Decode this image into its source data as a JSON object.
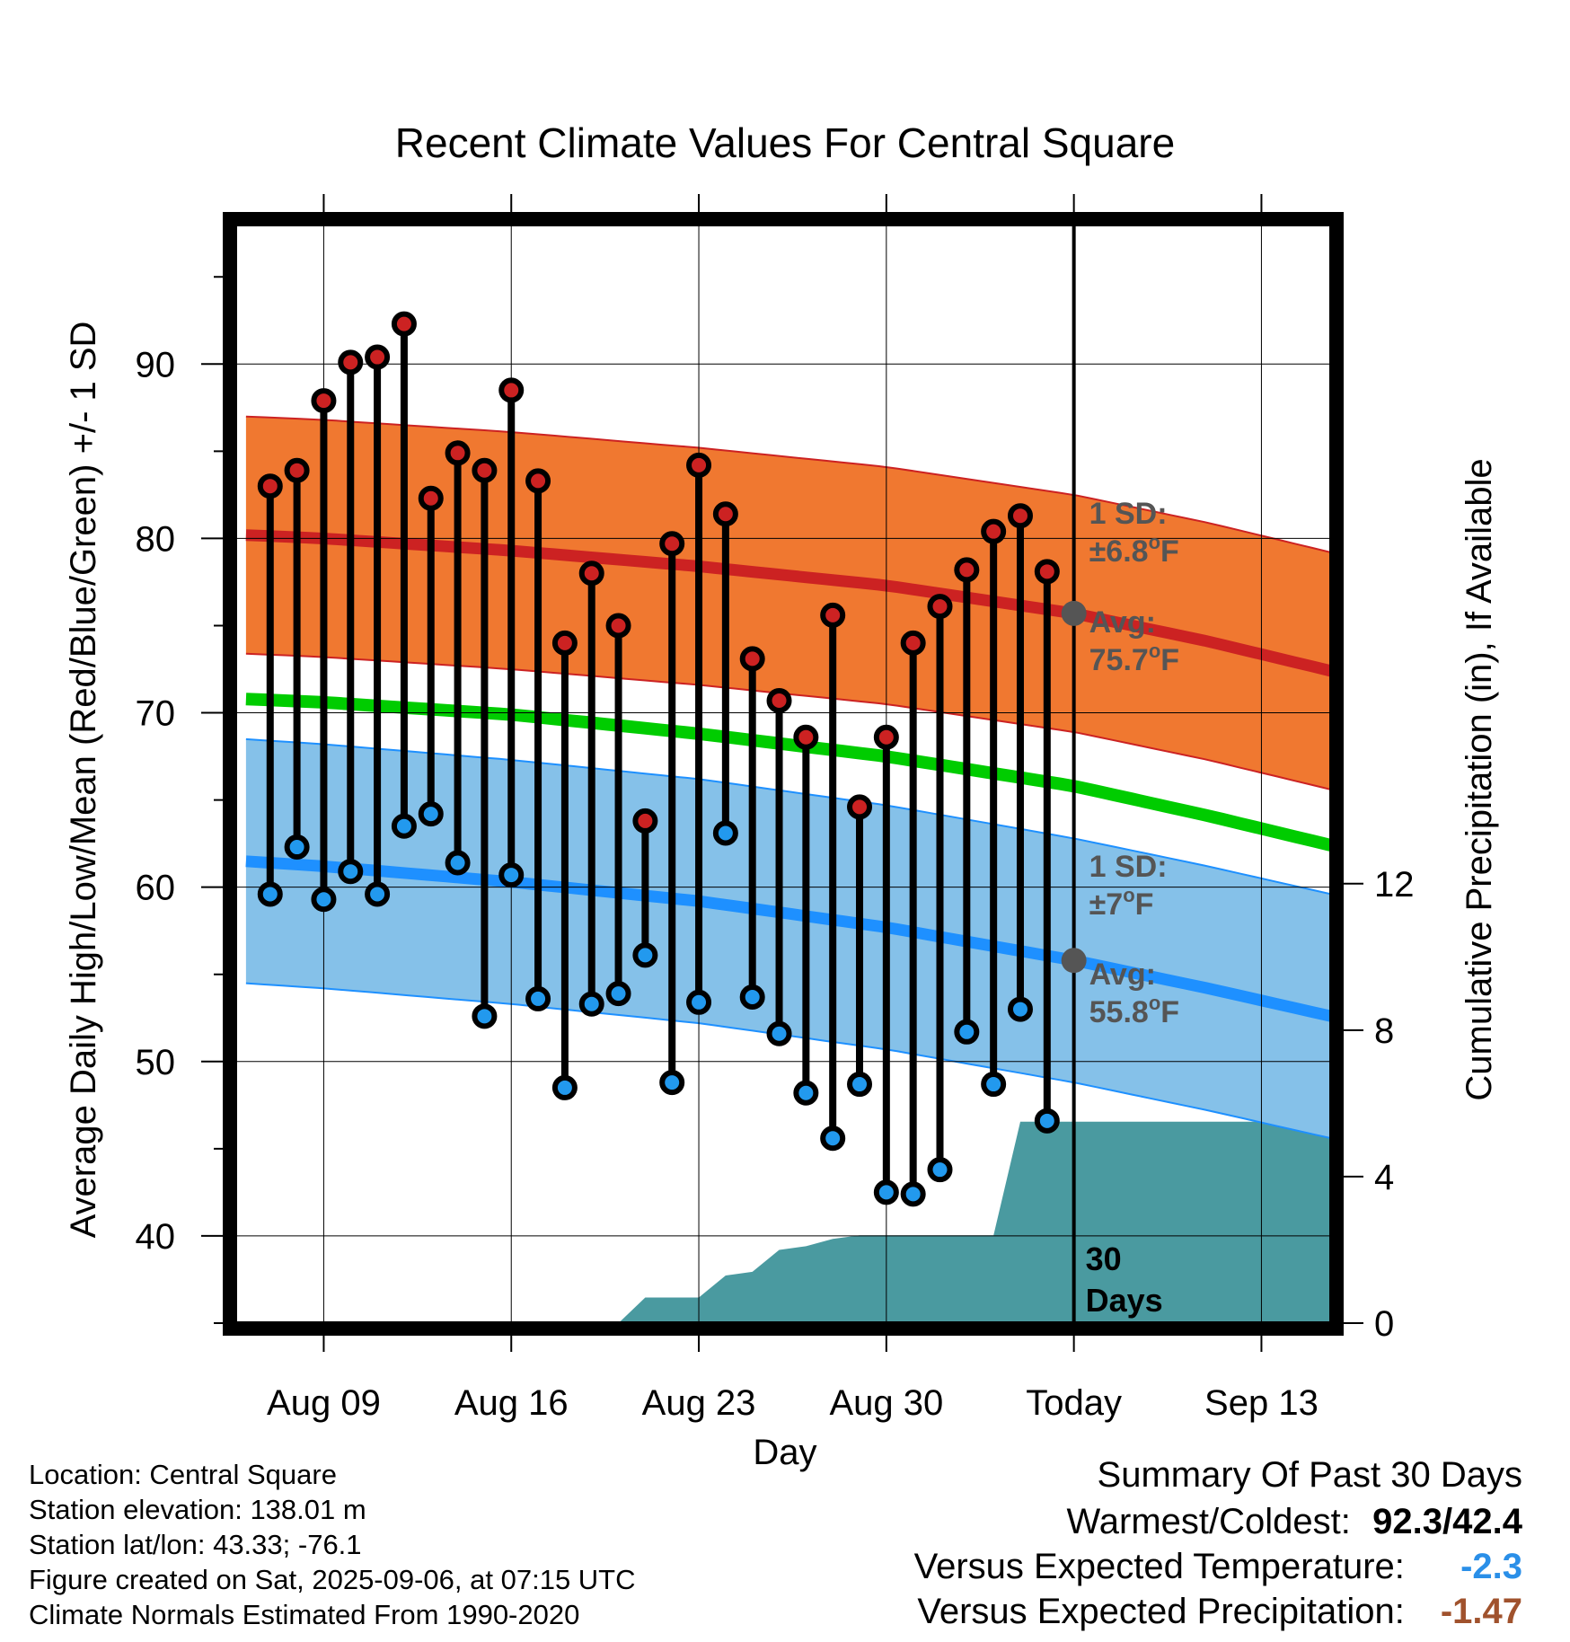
{
  "chart_data": {
    "type": "line",
    "title": "Recent Climate Values For Central Square",
    "xlabel": "Day",
    "ylabel": "Average Daily High/Low/Mean (Red/Blue/Green) +/- 1 SD",
    "y2label": "Cumulative Precipitation (in), If Available",
    "x_tick_labels": [
      "Aug 09",
      "Aug 16",
      "Aug 23",
      "Aug 30",
      "Today",
      "Sep 13"
    ],
    "x_tick_days": [
      -28,
      -21,
      -14,
      -7,
      0,
      7
    ],
    "xlim": [
      -31.3,
      9.6
    ],
    "ylim": [
      35,
      98
    ],
    "y_ticks": [
      40,
      50,
      60,
      70,
      80,
      90
    ],
    "y2lim": [
      0,
      30
    ],
    "y2_ticks": [
      0,
      4,
      8,
      12
    ],
    "grid": true,
    "days": [
      -30,
      -29,
      -28,
      -27,
      -26,
      -25,
      -24,
      -23,
      -22,
      -21,
      -20,
      -19,
      -18,
      -17,
      -16,
      -15,
      -14,
      -13,
      -12,
      -11,
      -10,
      -9,
      -8,
      -7,
      -6,
      -5,
      -4,
      -3,
      -2,
      -1
    ],
    "series": [
      {
        "name": "High",
        "color": "#cc2222",
        "values": [
          83.0,
          83.9,
          87.9,
          90.1,
          90.4,
          92.3,
          82.3,
          84.9,
          83.9,
          88.5,
          83.3,
          74.0,
          78.0,
          75.0,
          63.8,
          79.7,
          84.2,
          81.4,
          73.1,
          70.7,
          68.6,
          75.6,
          64.6,
          68.6,
          74.0,
          76.1,
          78.2,
          80.4,
          81.3,
          78.1
        ]
      },
      {
        "name": "Low",
        "color": "#2299ee",
        "values": [
          59.6,
          62.3,
          59.3,
          60.9,
          59.6,
          63.5,
          64.2,
          61.4,
          52.6,
          60.7,
          53.6,
          48.5,
          53.3,
          53.9,
          56.1,
          48.8,
          53.4,
          63.1,
          53.7,
          51.6,
          48.2,
          45.6,
          48.7,
          42.5,
          42.4,
          43.8,
          51.7,
          48.7,
          53.0,
          46.6
        ]
      }
    ],
    "normals": {
      "days": [
        -31,
        -28,
        -21,
        -14,
        -7,
        0,
        5,
        9.6
      ],
      "high_mean": [
        80.2,
        80.0,
        79.3,
        78.4,
        77.3,
        75.7,
        74.1,
        72.4
      ],
      "high_sd": 6.8,
      "low_mean": [
        61.5,
        61.2,
        60.3,
        59.2,
        57.7,
        55.8,
        54.2,
        52.6
      ],
      "low_sd": 7,
      "mean": [
        70.8,
        70.6,
        69.9,
        68.8,
        67.5,
        65.8,
        64.1,
        62.4
      ],
      "colors": {
        "high_band": "#f07830",
        "high_line": "#cc2222",
        "low_band": "#85c1e9",
        "low_line": "#1e90ff",
        "mean_line": "#00cc00"
      }
    },
    "precipitation": {
      "color": "#4a9aa0",
      "days": [
        -17,
        -16,
        -14,
        -13,
        -12,
        -11,
        -10,
        -9,
        -8,
        -7,
        -6,
        -5,
        -4,
        -3,
        -2,
        0,
        9.6
      ],
      "values": [
        0.0,
        0.7,
        0.7,
        1.3,
        1.4,
        2.0,
        2.1,
        2.3,
        2.4,
        2.4,
        2.4,
        2.4,
        2.4,
        2.4,
        5.5,
        5.5,
        5.5
      ]
    },
    "annotations": {
      "high_sd": "1 SD:",
      "high_sd_value": "±6.8",
      "high_avg": "Avg:",
      "high_avg_value": "75.7",
      "low_sd": "1 SD:",
      "low_sd_value": "±7",
      "low_avg": "Avg:",
      "low_avg_value": "55.8",
      "degree_unit": "o",
      "f_unit": "F",
      "window": [
        "30",
        "Days"
      ],
      "annotation_color": "#555555"
    }
  },
  "info": {
    "location": "Location: Central Square",
    "elevation": "Station elevation: 138.01 m",
    "latlon": "Station lat/lon: 43.33; -76.1",
    "created": "Figure created on Sat, 2025-09-06, at 07:15 UTC",
    "normals": "Climate Normals Estimated From 1990-2020"
  },
  "summary": {
    "title": "Summary Of Past 30 Days",
    "warm_cold_label": "Warmest/Coldest:",
    "warm_cold_value": "92.3/42.4",
    "temp_label": "Versus Expected Temperature:",
    "temp_value": "-2.3",
    "temp_color": "#2a8fe8",
    "precip_label": "Versus Expected Precipitation:",
    "precip_value": "-1.47",
    "precip_color": "#a0522d"
  }
}
